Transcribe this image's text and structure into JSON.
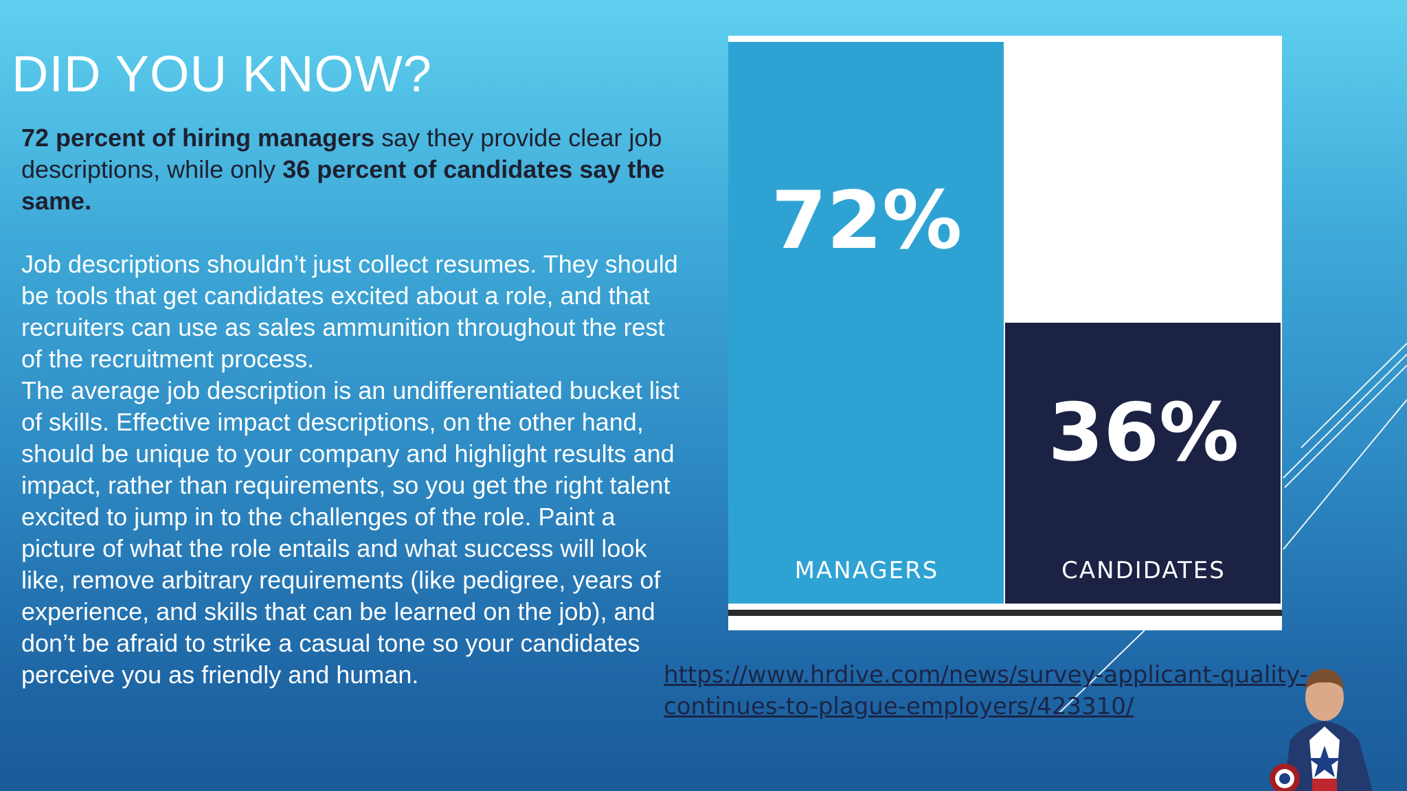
{
  "slide": {
    "title": "DID YOU KNOW?",
    "lead": {
      "part1_bold": "72 percent of hiring managers",
      "part2": " say they provide clear job descriptions, while only ",
      "part3_bold": "36 percent of candidates say the same."
    },
    "paragraphs": [
      "Job descriptions shouldn’t just collect resumes. They should be tools that get candidates excited about a role, and that recruiters can use as sales ammunition throughout the rest of the recruitment process.",
      "The average job description is an undifferentiated bucket list of skills. Effective impact descriptions, on the other hand, should be unique to your company and highlight results and impact, rather than requirements, so you get the right talent excited to jump in to the challenges of the role. Paint a picture of what the role entails and what success will look like, remove arbitrary requirements (like pedigree, years of experience, and skills that can be learned on the job), and don’t be afraid to strike a casual tone so your candidates perceive you as friendly and human."
    ],
    "source_url": "https://www.hrdive.com/news/survey-applicant-quality-continues-to-plague-employers/423310/",
    "hero_icon": "captain-america-figure"
  },
  "chart_data": {
    "type": "bar",
    "categories": [
      "MANAGERS",
      "CANDIDATES"
    ],
    "values": [
      72,
      36
    ],
    "value_labels": [
      "72%",
      "36%"
    ],
    "ylim": [
      0,
      72
    ],
    "colors": [
      "#2ea3d3",
      "#1b2244"
    ],
    "label_color": "#ffffff",
    "grid": false,
    "legend": "none"
  }
}
